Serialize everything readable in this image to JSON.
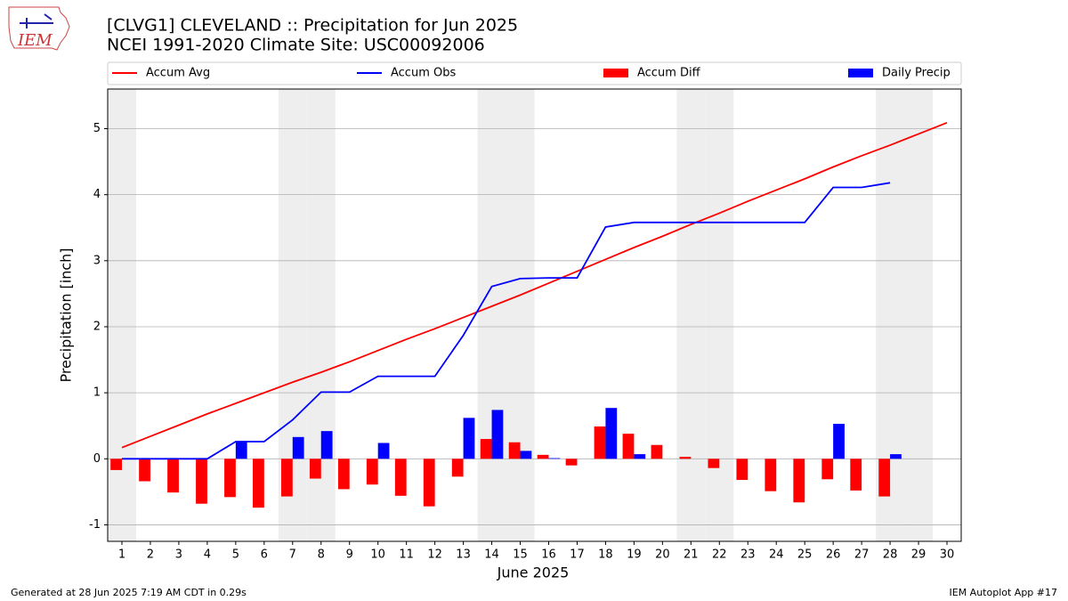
{
  "chart_data": {
    "type": "bar",
    "logo_text": "IEM",
    "title": "[CLVG1] CLEVELAND :: Precipitation for Jun 2025",
    "subtitle": "NCEI 1991-2020 Climate Site: USC00092006",
    "xlabel": "June 2025",
    "ylabel": "Precipitation [inch]",
    "footer_left": "Generated at 28 Jun 2025 7:19 AM CDT in 0.29s",
    "footer_right": "IEM Autoplot App #17",
    "categories": [
      1,
      2,
      3,
      4,
      5,
      6,
      7,
      8,
      9,
      10,
      11,
      12,
      13,
      14,
      15,
      16,
      17,
      18,
      19,
      20,
      21,
      22,
      23,
      24,
      25,
      26,
      27,
      28,
      29,
      30
    ],
    "series": [
      {
        "name": "Accum Avg",
        "type": "line",
        "color": "#ff0000",
        "values": [
          0.17,
          0.34,
          0.51,
          0.68,
          0.84,
          1.0,
          1.16,
          1.31,
          1.47,
          1.64,
          1.81,
          1.97,
          2.14,
          2.31,
          2.48,
          2.66,
          2.84,
          3.02,
          3.2,
          3.37,
          3.55,
          3.72,
          3.9,
          4.07,
          4.24,
          4.42,
          4.59,
          4.75,
          4.92,
          5.09
        ]
      },
      {
        "name": "Accum Obs",
        "type": "line",
        "color": "#0000ff",
        "values": [
          0,
          0,
          0,
          0,
          0.26,
          0.26,
          0.59,
          1.01,
          1.01,
          1.25,
          1.25,
          1.25,
          1.87,
          2.61,
          2.73,
          2.74,
          2.74,
          3.51,
          3.58,
          3.58,
          3.58,
          3.58,
          3.58,
          3.58,
          3.58,
          4.11,
          4.11,
          4.18,
          null,
          null
        ]
      },
      {
        "name": "Accum Diff",
        "type": "bar",
        "color": "#ff0000",
        "values": [
          -0.17,
          -0.34,
          -0.51,
          -0.68,
          -0.58,
          -0.74,
          -0.57,
          -0.3,
          -0.46,
          -0.39,
          -0.56,
          -0.72,
          -0.27,
          0.3,
          0.25,
          0.06,
          -0.1,
          0.49,
          0.38,
          0.21,
          0.03,
          -0.14,
          -0.32,
          -0.49,
          -0.66,
          -0.31,
          -0.48,
          -0.57,
          null,
          null
        ]
      },
      {
        "name": "Daily Precip",
        "type": "bar",
        "color": "#0000ff",
        "values": [
          0,
          0,
          0,
          0,
          0.26,
          0,
          0.33,
          0.42,
          0,
          0.24,
          0,
          0,
          0.62,
          0.74,
          0.12,
          0.01,
          0,
          0.77,
          0.07,
          0,
          0,
          0,
          0,
          0,
          0,
          0.53,
          0,
          0.07,
          null,
          null
        ]
      }
    ],
    "xlim": [
      0.5,
      30.5
    ],
    "ylim": [
      -1.25,
      5.6
    ],
    "yticks": [
      -1,
      0,
      1,
      2,
      3,
      4,
      5
    ],
    "grid": true
  }
}
